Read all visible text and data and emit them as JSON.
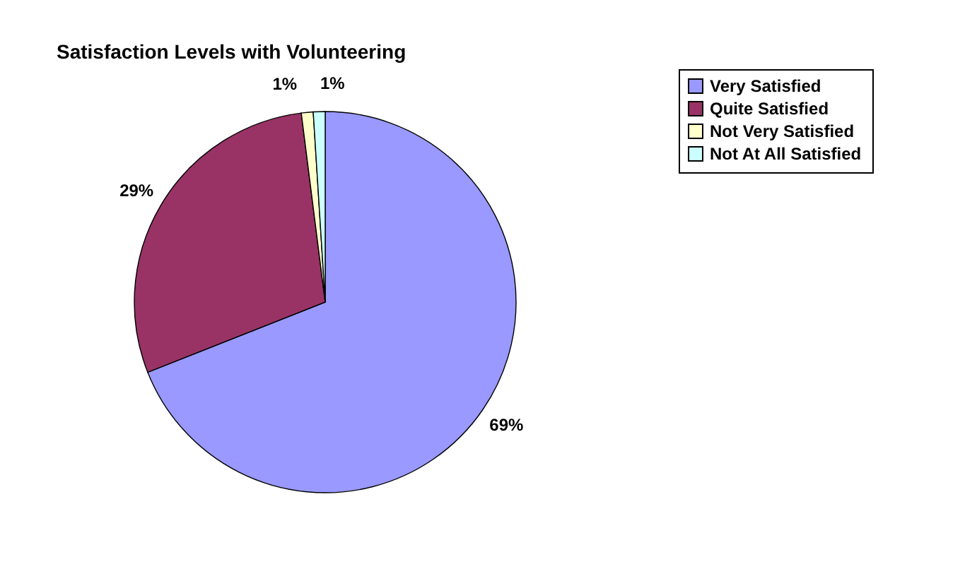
{
  "chart_data": {
    "type": "pie",
    "title": "Satisfaction Levels with Volunteering",
    "categories": [
      "Very Satisfied",
      "Quite Satisfied",
      "Not Very Satisfied",
      "Not At All Satisfied"
    ],
    "values": [
      69,
      29,
      1,
      1
    ],
    "colors": [
      "#9999ff",
      "#993366",
      "#ffffcc",
      "#ccffff"
    ],
    "value_labels": [
      "69%",
      "29%",
      "1%",
      "1%"
    ],
    "legend": "right"
  }
}
